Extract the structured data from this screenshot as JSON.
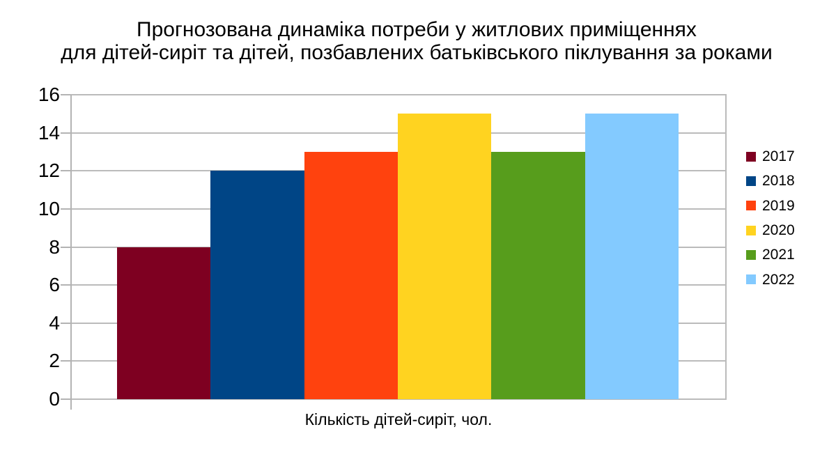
{
  "title": {
    "line1": "Прогнозована динаміка потреби у житлових приміщеннях",
    "line2": "для дітей-сиріт та дітей, позбавлених батьківського піклування за роками"
  },
  "chart_data": {
    "type": "bar",
    "title": "Прогнозована динаміка потреби у житлових приміщеннях для дітей-сиріт та дітей, позбавлених батьківського піклування за роками",
    "xlabel": "Кількість дітей-сиріт, чол.",
    "ylabel": "",
    "ylim": [
      0,
      16
    ],
    "yticks": [
      0,
      2,
      4,
      6,
      8,
      10,
      12,
      14,
      16
    ],
    "grid": true,
    "legend_position": "right",
    "categories": [
      "2017",
      "2018",
      "2019",
      "2020",
      "2021",
      "2022"
    ],
    "values": [
      8,
      12,
      13,
      15,
      13,
      15
    ],
    "series": [
      {
        "name": "2017",
        "value": 8,
        "color": "#7E0021"
      },
      {
        "name": "2018",
        "value": 12,
        "color": "#004586"
      },
      {
        "name": "2019",
        "value": 13,
        "color": "#FF420E"
      },
      {
        "name": "2020",
        "value": 15,
        "color": "#FFD320"
      },
      {
        "name": "2021",
        "value": 13,
        "color": "#579D1C"
      },
      {
        "name": "2022",
        "value": 15,
        "color": "#83CAFF"
      }
    ],
    "style_colors": {
      "grid": "#BBBBBB",
      "axis": "#B3B3B3",
      "text": "#000000",
      "background": "#FFFFFF"
    }
  }
}
